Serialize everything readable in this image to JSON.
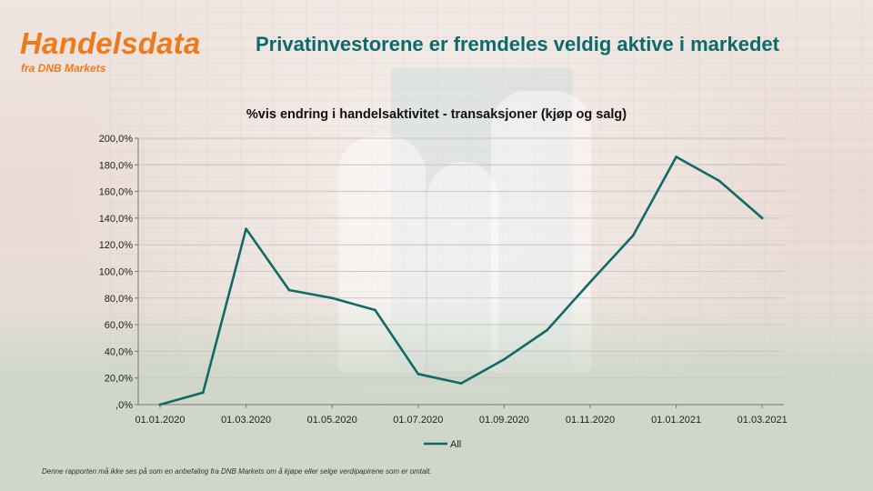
{
  "brand": {
    "name": "Handelsdata",
    "subtitle": "fra DNB Markets"
  },
  "headline": "Privatinvestorene er fremdeles veldig aktive i markedet",
  "disclaimer": "Denne rapporten må ikke ses på som en anbefaling fra DNB Markets om å kjøpe eller selge verdipapirene som er omtalt.",
  "colors": {
    "brand_orange": "#ef7a1c",
    "headline_teal": "#0d6a6a",
    "series_line": "#0f6b68"
  },
  "chart_data": {
    "type": "line",
    "title": "%vis endring i handelsaktivitet - transaksjoner (kjøp og salg)",
    "xlabel": "",
    "ylabel": "",
    "ylim": [
      0,
      200
    ],
    "y_ticks": [
      "200,0%",
      "180,0%",
      "160,0%",
      "140,0%",
      "120,0%",
      "100,0%",
      "80,0%",
      "60,0%",
      "40,0%",
      "20,0%",
      ",0%"
    ],
    "x_tick_labels": [
      "01.01.2020",
      "01.03.2020",
      "01.05.2020",
      "01.07.2020",
      "01.09.2020",
      "01.11.2020",
      "01.01.2021",
      "01.03.2021"
    ],
    "x": [
      "2020-01",
      "2020-02",
      "2020-03",
      "2020-04",
      "2020-05",
      "2020-06",
      "2020-07",
      "2020-08",
      "2020-09",
      "2020-10",
      "2020-11",
      "2020-12",
      "2021-01",
      "2021-02",
      "2021-03"
    ],
    "series": [
      {
        "name": "All",
        "values": [
          0,
          9,
          132,
          86,
          80,
          71,
          23,
          16,
          34,
          56,
          92,
          127,
          186,
          168,
          140
        ]
      }
    ],
    "grid": true,
    "legend": "bottom-center"
  }
}
